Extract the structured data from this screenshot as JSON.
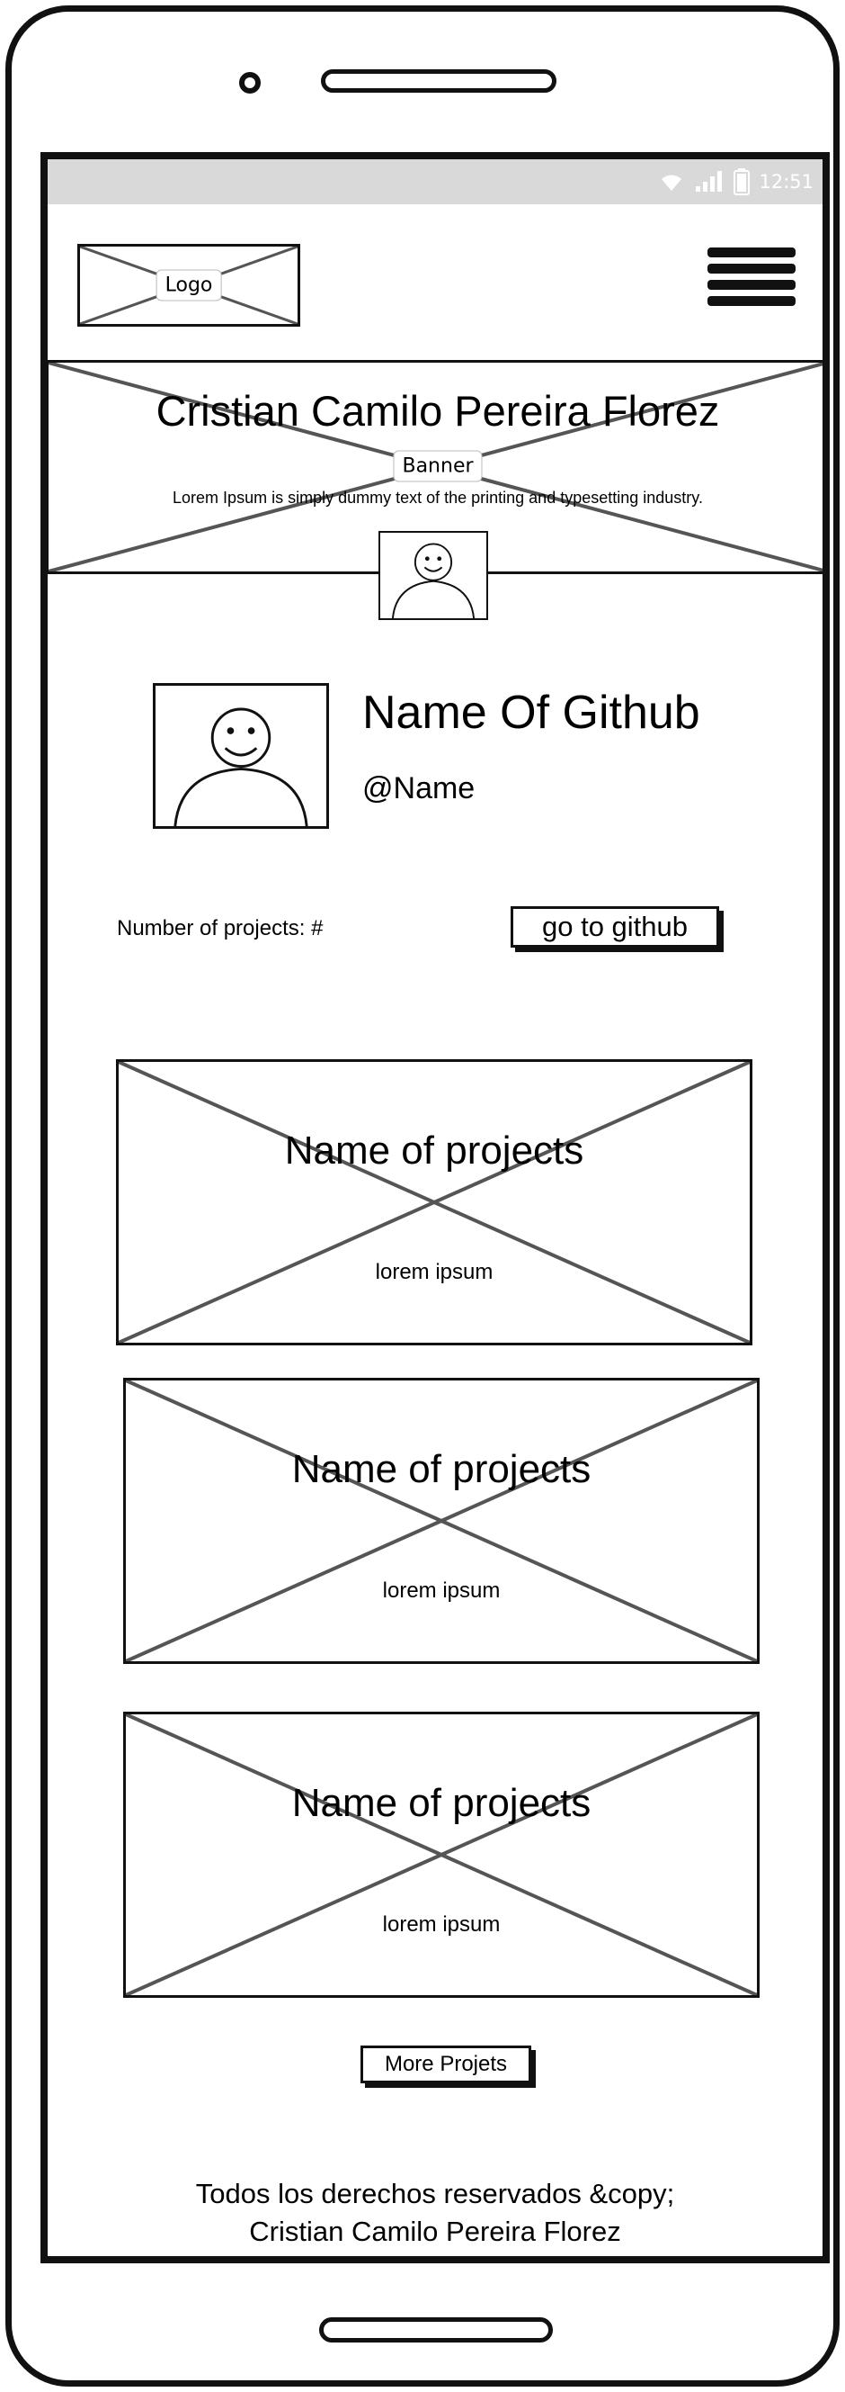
{
  "status_bar": {
    "time": "12:51"
  },
  "header": {
    "logo_label": "Logo",
    "menu_icon": "hamburger-menu-icon"
  },
  "banner": {
    "title": "Cristian Camilo Pereira Florez",
    "label": "Banner",
    "text": "Lorem Ipsum is simply dummy text of the printing and typesetting industry."
  },
  "profile": {
    "name": "Name Of Github",
    "handle": "@Name"
  },
  "stats": {
    "projects_count_label": "Number of projects: #",
    "github_button_label": "go to github"
  },
  "projects": [
    {
      "title": "Name of projects",
      "description": "lorem ipsum"
    },
    {
      "title": "Name of projects",
      "description": "lorem ipsum"
    },
    {
      "title": "Name of projects",
      "description": "lorem ipsum"
    }
  ],
  "more_button_label": "More Projets",
  "footer": {
    "line1": "Todos los derechos reservados &copy;",
    "line2": "Cristian Camilo Pereira Florez"
  }
}
